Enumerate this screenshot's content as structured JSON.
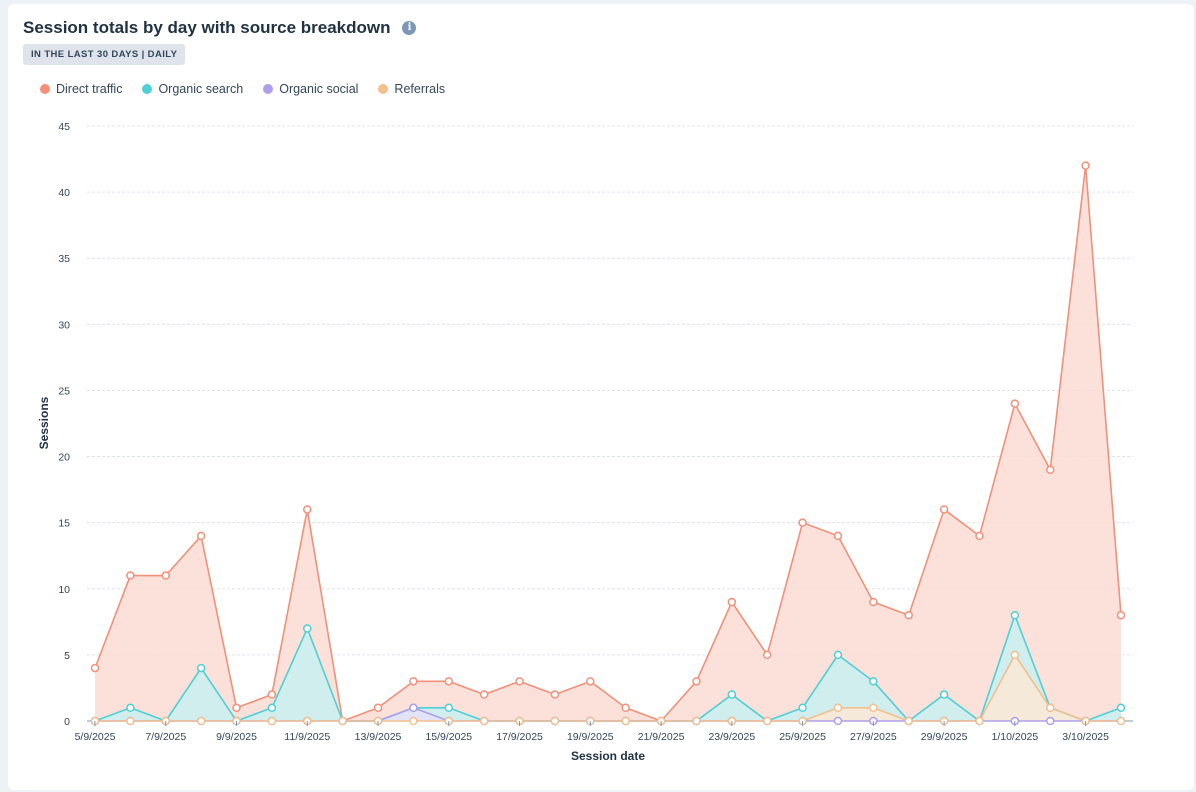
{
  "header": {
    "title": "Session totals by day with source breakdown",
    "badge": "IN THE LAST 30 DAYS | DAILY"
  },
  "chart_data": {
    "type": "area",
    "title": "Session totals by day with source breakdown",
    "subtitle": "IN THE LAST 30 DAYS | DAILY",
    "xlabel": "Session date",
    "ylabel": "Sessions",
    "ylim": [
      0,
      45
    ],
    "yticks": [
      0,
      5,
      10,
      15,
      20,
      25,
      30,
      35,
      40,
      45
    ],
    "grid": true,
    "legend_position": "top-left",
    "x": [
      "5/9/2025",
      "6/9/2025",
      "7/9/2025",
      "8/9/2025",
      "9/9/2025",
      "10/9/2025",
      "11/9/2025",
      "12/9/2025",
      "13/9/2025",
      "14/9/2025",
      "15/9/2025",
      "16/9/2025",
      "17/9/2025",
      "18/9/2025",
      "19/9/2025",
      "20/9/2025",
      "21/9/2025",
      "22/9/2025",
      "23/9/2025",
      "24/9/2025",
      "25/9/2025",
      "26/9/2025",
      "27/9/2025",
      "28/9/2025",
      "29/9/2025",
      "30/9/2025",
      "1/10/2025",
      "2/10/2025",
      "3/10/2025",
      "4/10/2025"
    ],
    "xtick_labels": [
      "5/9/2025",
      "",
      "7/9/2025",
      "",
      "9/9/2025",
      "",
      "11/9/2025",
      "",
      "13/9/2025",
      "",
      "15/9/2025",
      "",
      "17/9/2025",
      "",
      "19/9/2025",
      "",
      "21/9/2025",
      "",
      "23/9/2025",
      "",
      "25/9/2025",
      "",
      "27/9/2025",
      "",
      "29/9/2025",
      "",
      "1/10/2025",
      "",
      "3/10/2025",
      ""
    ],
    "series": [
      {
        "name": "Direct traffic",
        "color": "#f2907a",
        "fill": "#fbdcd4",
        "values": [
          4,
          11,
          11,
          14,
          1,
          2,
          16,
          0,
          1,
          3,
          3,
          2,
          3,
          2,
          3,
          1,
          0,
          3,
          9,
          5,
          15,
          14,
          9,
          8,
          16,
          14,
          24,
          19,
          42,
          8
        ]
      },
      {
        "name": "Organic search",
        "color": "#4fcfd5",
        "fill": "#c9f0f1",
        "values": [
          0,
          1,
          0,
          4,
          0,
          1,
          7,
          0,
          0,
          1,
          1,
          0,
          0,
          0,
          0,
          0,
          0,
          0,
          2,
          0,
          1,
          5,
          3,
          0,
          2,
          0,
          8,
          1,
          0,
          1
        ]
      },
      {
        "name": "Organic social",
        "color": "#ae9fea",
        "fill": "#e6e0f8",
        "values": [
          0,
          0,
          0,
          0,
          0,
          0,
          0,
          0,
          0,
          1,
          0,
          0,
          0,
          0,
          0,
          0,
          0,
          0,
          0,
          0,
          0,
          0,
          0,
          0,
          0,
          0,
          0,
          0,
          0,
          0
        ]
      },
      {
        "name": "Referrals",
        "color": "#f3bf8e",
        "fill": "#fbe8d5",
        "values": [
          0,
          0,
          0,
          0,
          0,
          0,
          0,
          0,
          0,
          0,
          0,
          0,
          0,
          0,
          0,
          0,
          0,
          0,
          0,
          0,
          0,
          1,
          1,
          0,
          0,
          0,
          5,
          1,
          0,
          0
        ]
      }
    ]
  }
}
